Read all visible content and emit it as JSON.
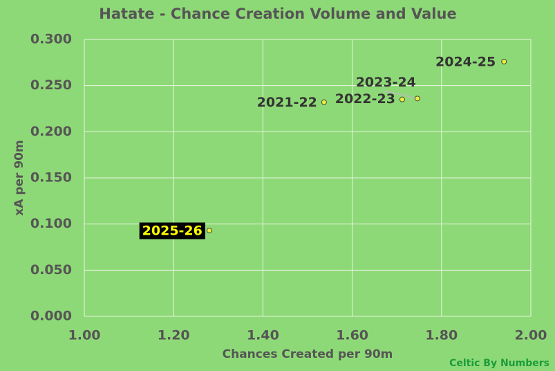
{
  "chart_data": {
    "type": "scatter",
    "title": "Hatate - Chance Creation Volume and Value",
    "x_label": "Chances Created per 90m",
    "y_label": "xA per 90m",
    "point_labels": [
      "2021-22",
      "2022-23",
      "2023-24",
      "2024-25",
      "2025-26"
    ],
    "x": [
      1.537,
      1.712,
      1.746,
      1.94,
      1.28
    ],
    "y": [
      0.232,
      0.235,
      0.236,
      0.276,
      0.093
    ],
    "color": "#e8f23c",
    "xlim": [
      1,
      2
    ],
    "ylim": [
      0,
      0.3
    ],
    "xticks": [
      {
        "value": 1,
        "label": "1.00"
      },
      {
        "value": 1.2,
        "label": "1.20"
      },
      {
        "value": 1.4,
        "label": "1.40"
      },
      {
        "value": 1.6,
        "label": "1.60"
      },
      {
        "value": 1.8,
        "label": "1.80"
      },
      {
        "value": 2,
        "label": "2.00"
      }
    ],
    "yticks": [
      {
        "value": 0,
        "label": "0.000"
      },
      {
        "value": 0.05,
        "label": "0.050"
      },
      {
        "value": 0.1,
        "label": "0.100"
      },
      {
        "value": 0.15,
        "label": "0.150"
      },
      {
        "value": 0.2,
        "label": "0.200"
      },
      {
        "value": 0.25,
        "label": "0.250"
      },
      {
        "value": 0.3,
        "label": "0.300"
      }
    ],
    "grid": true
  },
  "watermark": "Celtic By Numbers"
}
